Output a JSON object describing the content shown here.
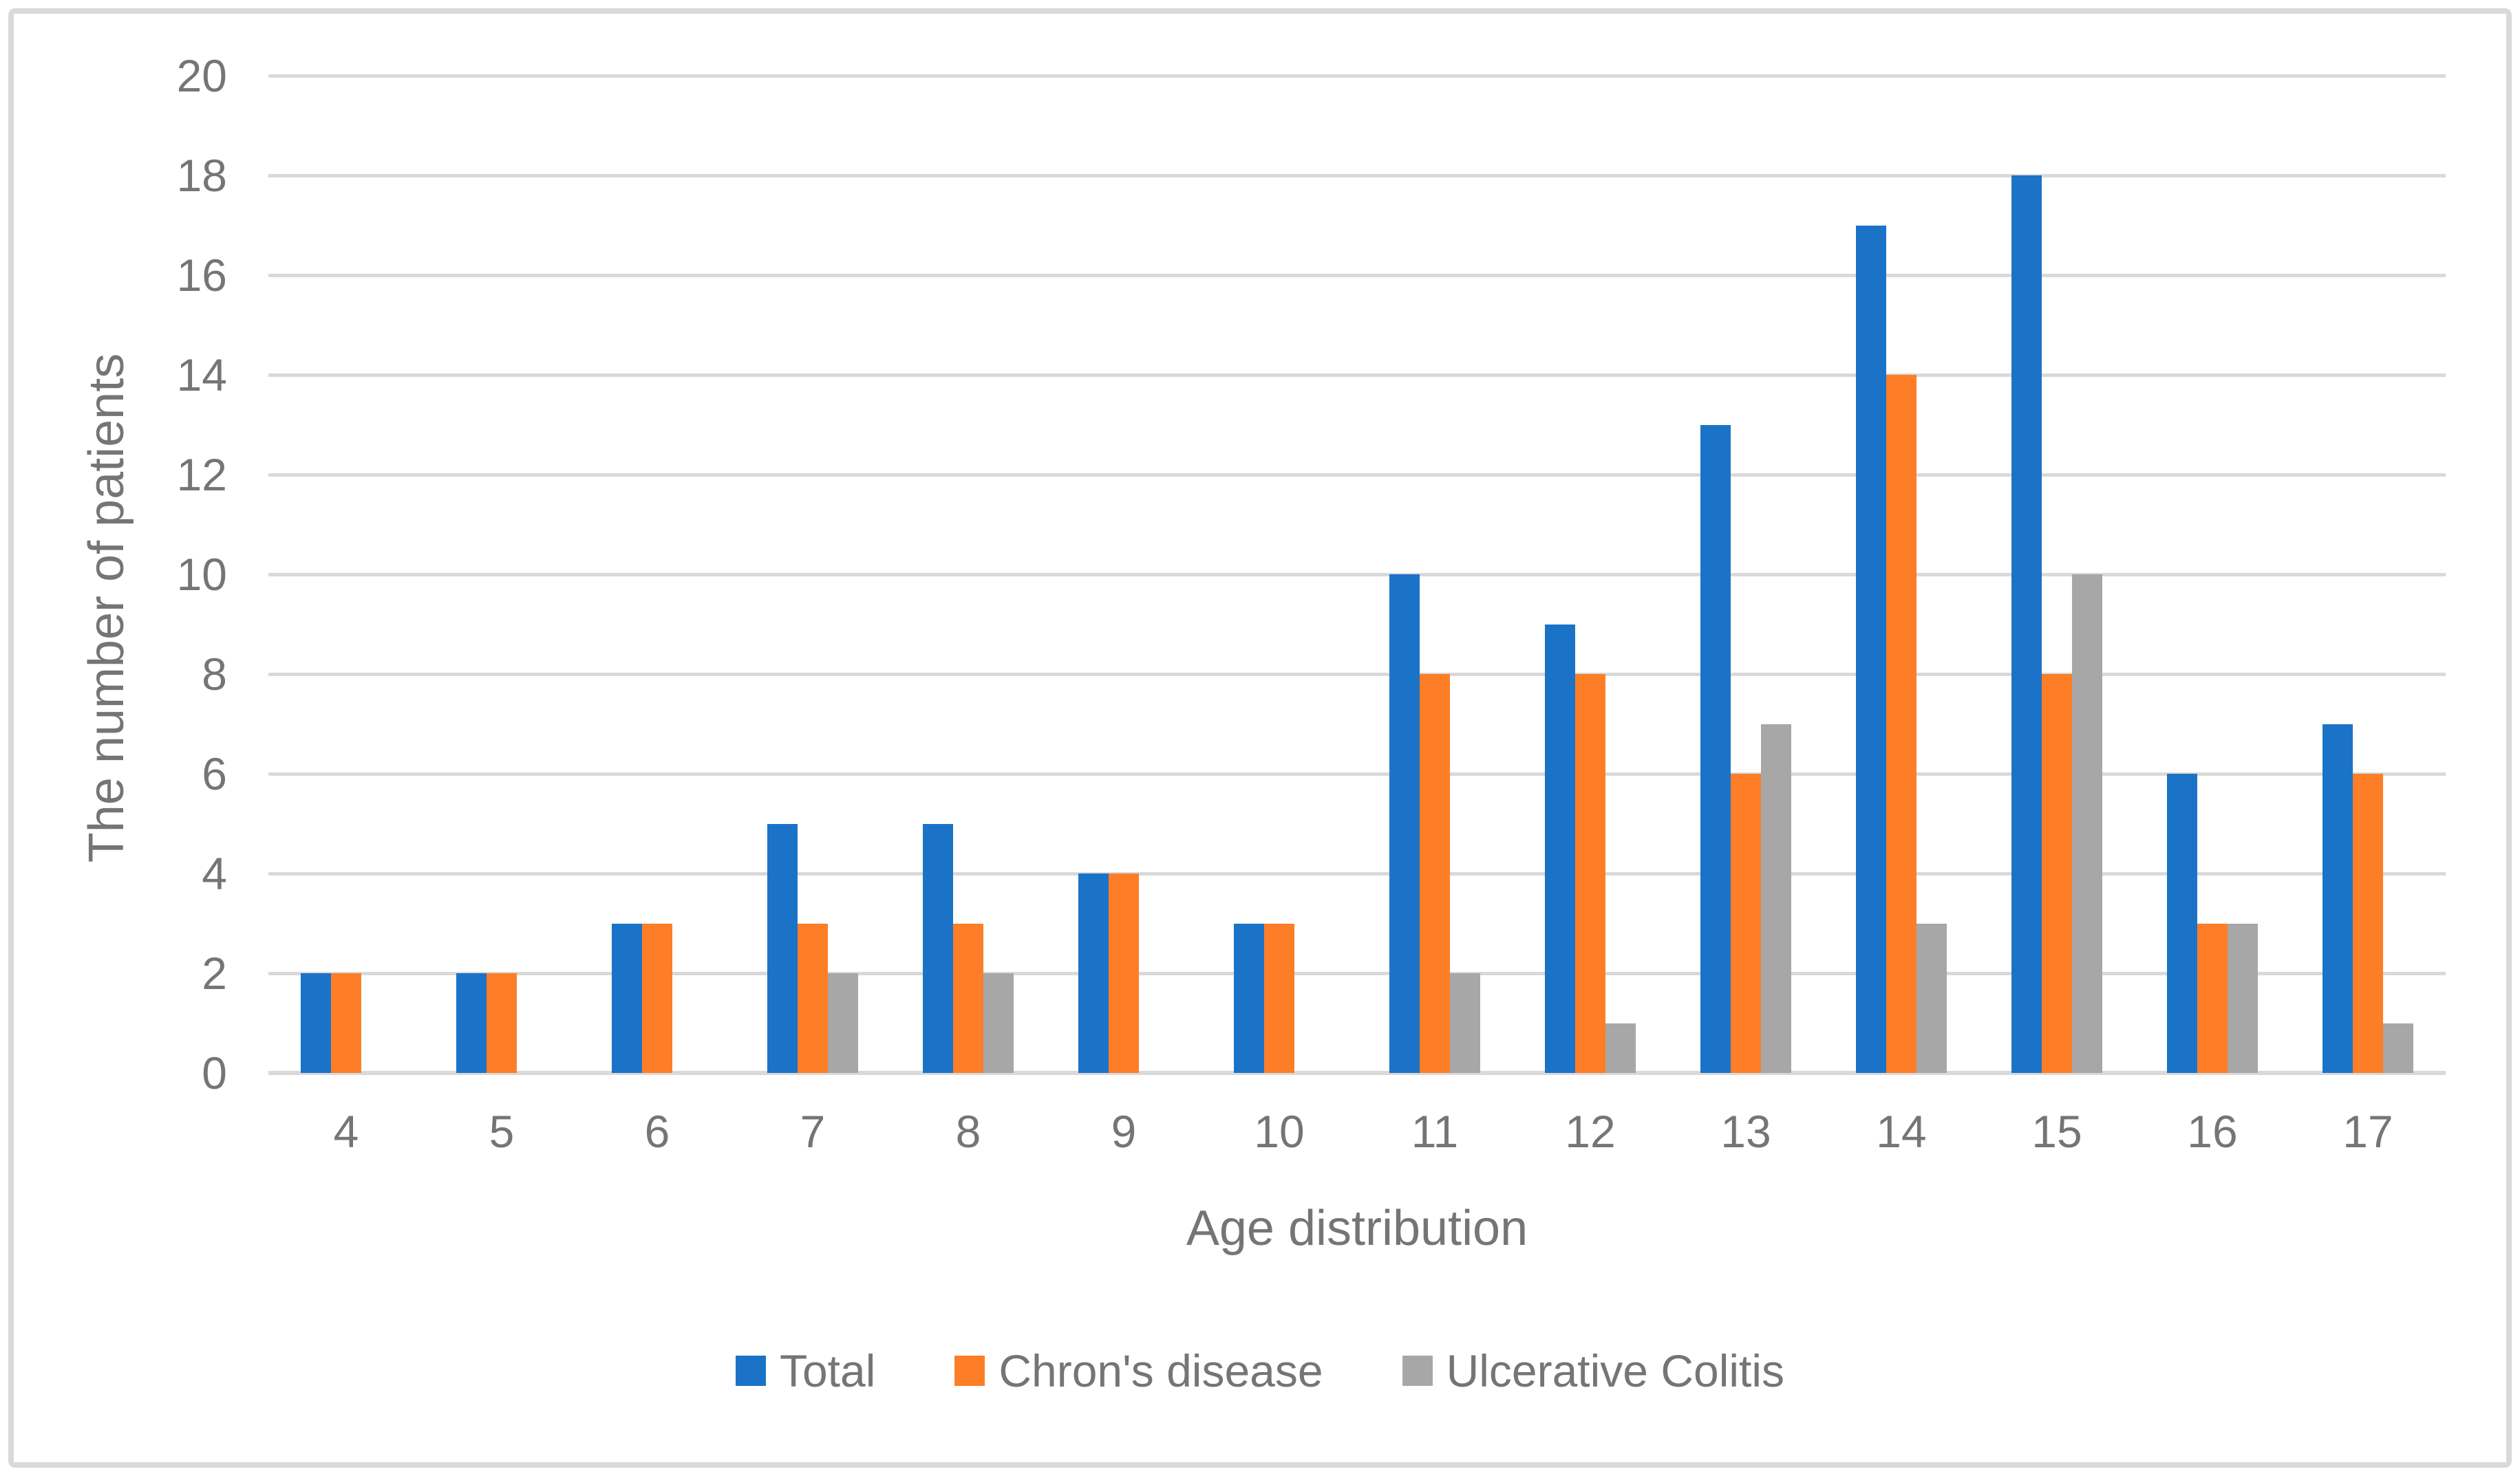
{
  "chart_data": {
    "type": "bar",
    "title": "",
    "xlabel": "Age distribution",
    "ylabel": "The number of patients",
    "categories": [
      "4",
      "5",
      "6",
      "7",
      "8",
      "9",
      "10",
      "11",
      "12",
      "13",
      "14",
      "15",
      "16",
      "17"
    ],
    "series": [
      {
        "name": "Total",
        "color": "#1b73c8",
        "values": [
          2,
          2,
          3,
          5,
          5,
          4,
          3,
          10,
          9,
          13,
          17,
          18,
          6,
          7
        ]
      },
      {
        "name": "Chron's disease",
        "color": "#fd7e27",
        "values": [
          2,
          2,
          3,
          3,
          3,
          4,
          3,
          8,
          8,
          6,
          14,
          8,
          3,
          6
        ]
      },
      {
        "name": "Ulcerative Colitis",
        "color": "#a7a7a7",
        "values": [
          0,
          0,
          0,
          2,
          2,
          0,
          0,
          2,
          1,
          7,
          3,
          10,
          3,
          1
        ]
      }
    ],
    "ylim": [
      0,
      20
    ],
    "ytick_step": 2,
    "yticks": [
      "0",
      "2",
      "4",
      "6",
      "8",
      "10",
      "12",
      "14",
      "16",
      "18",
      "20"
    ],
    "grid": "horizontal",
    "legend_position": "bottom"
  },
  "colors": {
    "gridline": "#d9d9d9",
    "axis_line": "#d9d9d9",
    "text": "#757575",
    "border": "#d9d9d9",
    "background": "#ffffff"
  }
}
